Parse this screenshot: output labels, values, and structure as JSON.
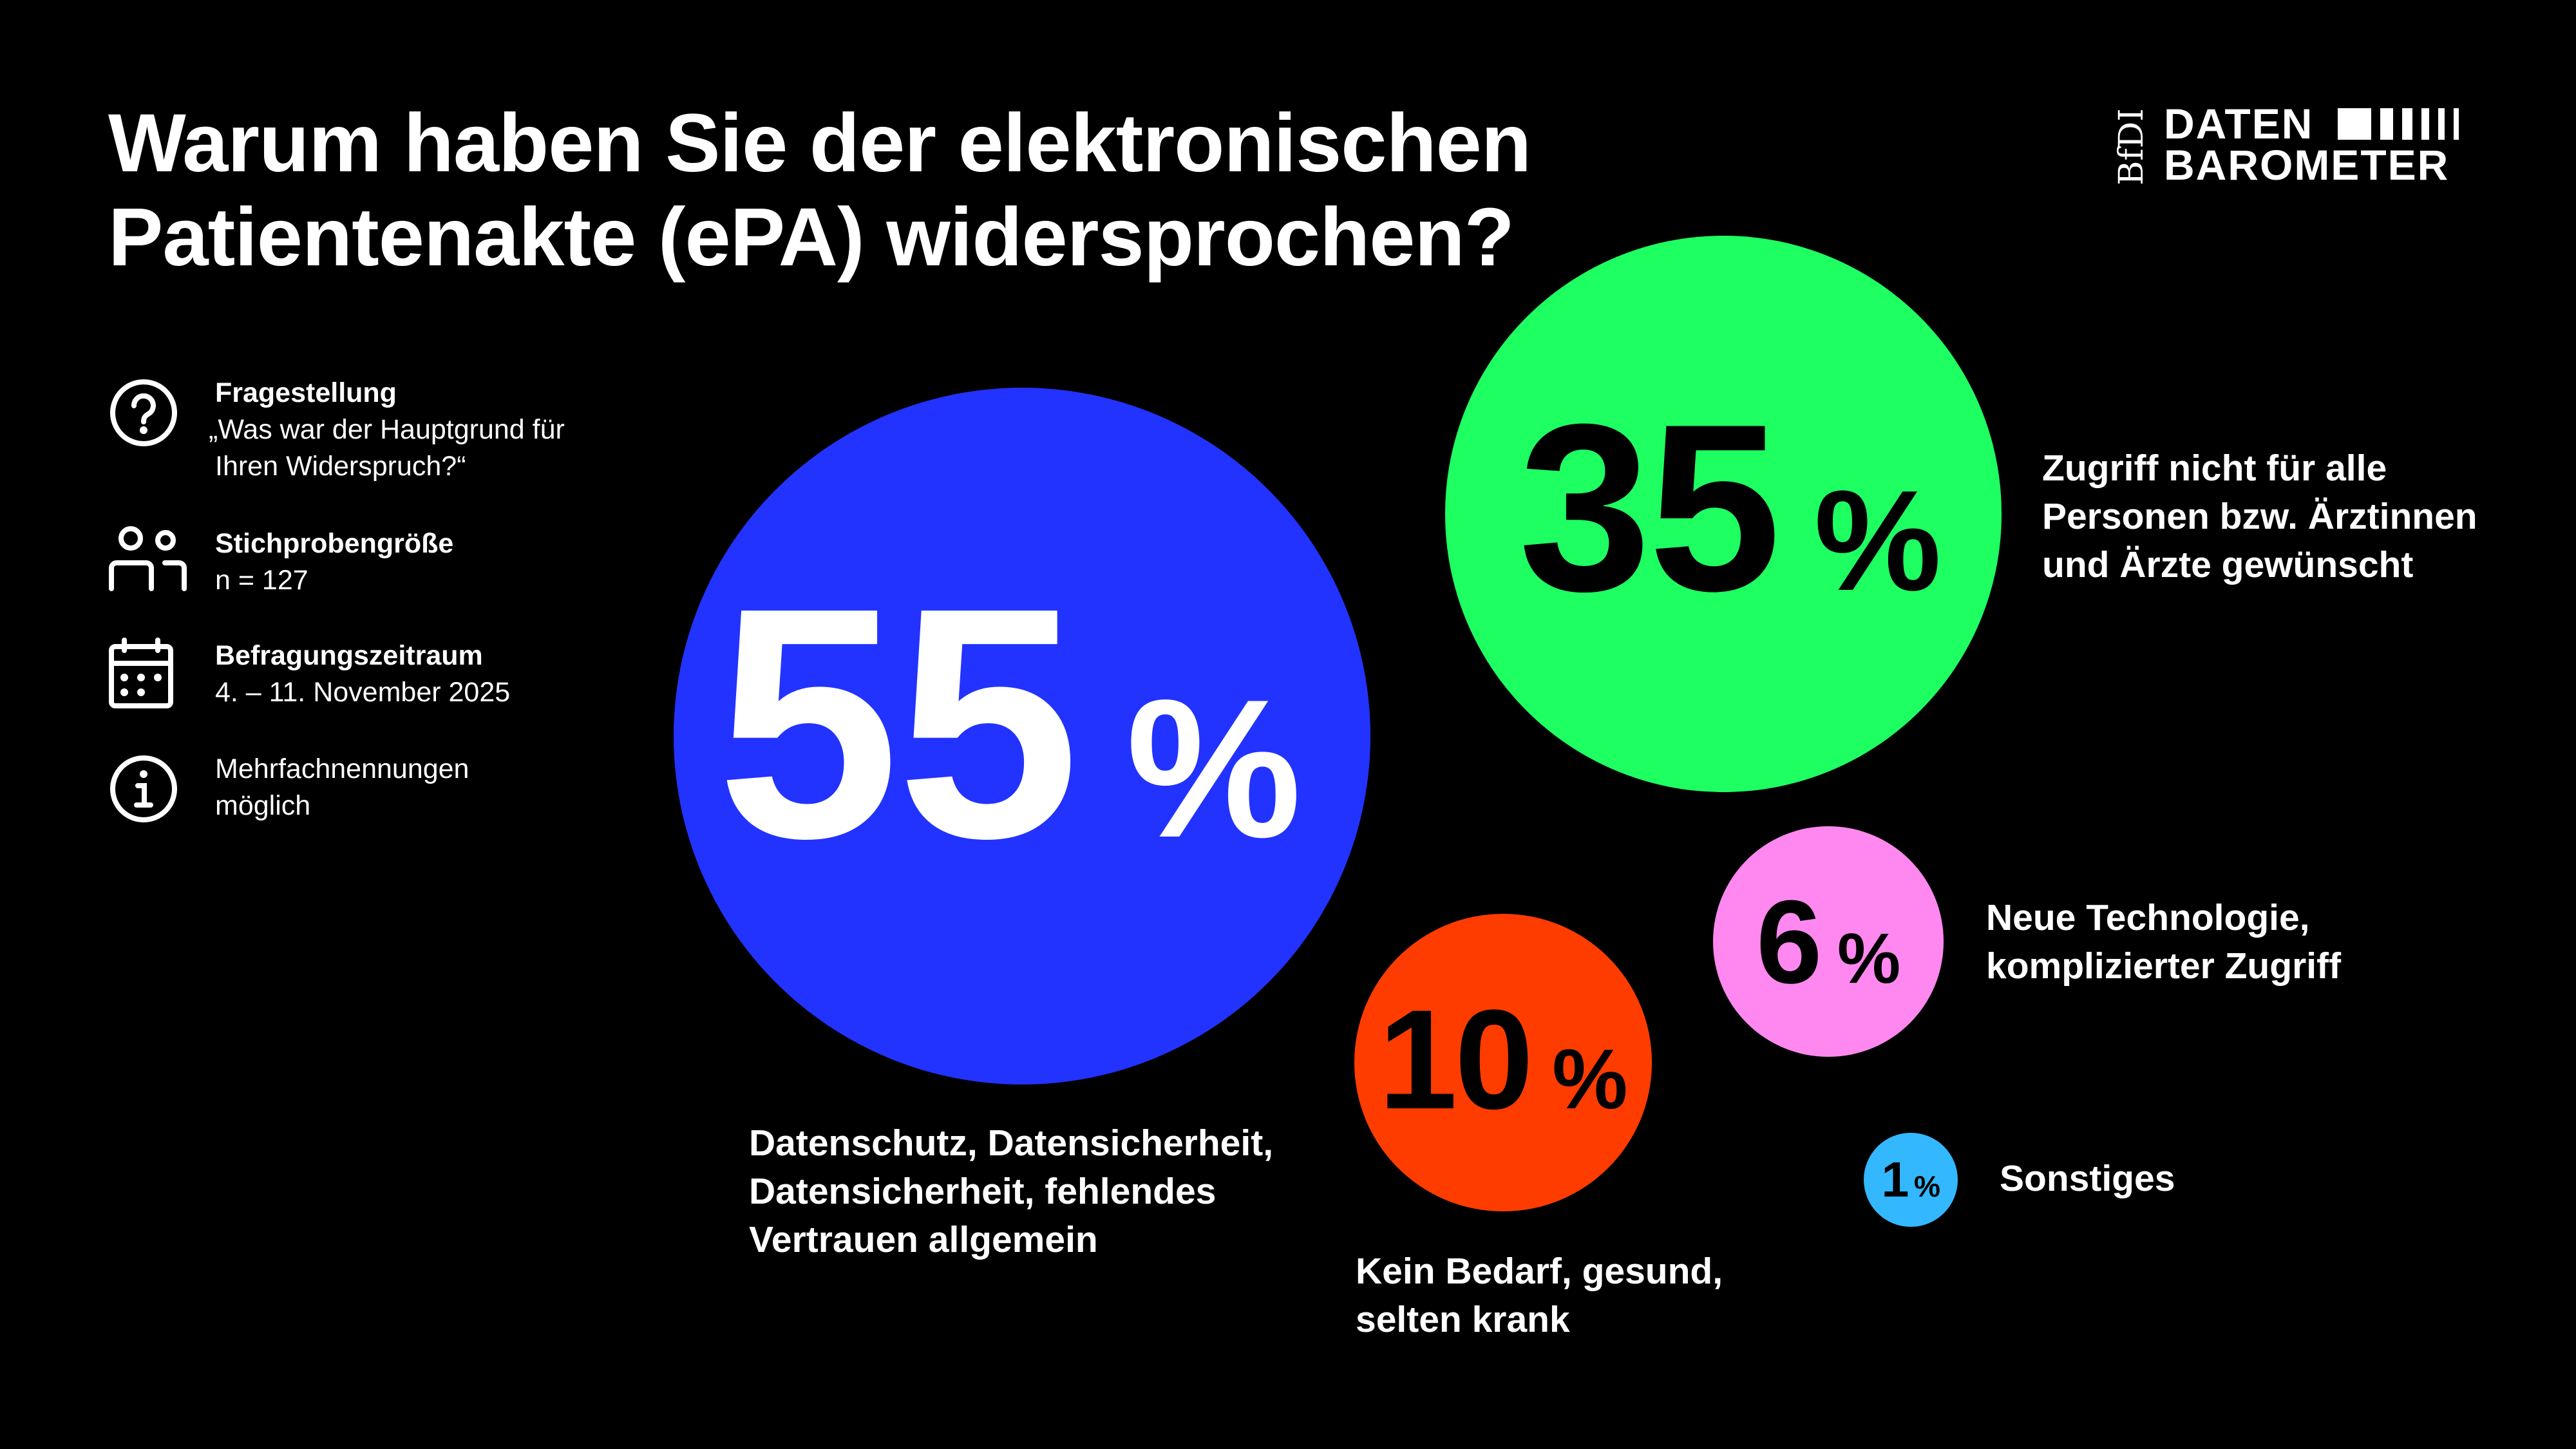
{
  "title": [
    "Warum haben Sie der elektronischen",
    "Patientenakte (ePA) widersprochen?"
  ],
  "logo": {
    "bfdi": "BfDI",
    "line1": "DATEN",
    "line2": "BAROMETER"
  },
  "meta": [
    {
      "icon": "question-circle-icon",
      "heading": "Fragestellung",
      "text": [
        "„Was war der Hauptgrund für",
        "Ihren Widerspruch?“"
      ]
    },
    {
      "icon": "people-icon",
      "heading": "Stichprobengröße",
      "text": [
        "n = 127"
      ]
    },
    {
      "icon": "calendar-icon",
      "heading": "Befragungszeitraum",
      "text": [
        "4. – 11. November 2025"
      ]
    },
    {
      "icon": "info-circle-icon",
      "heading": "",
      "text": [
        "Mehrfachnennungen",
        "möglich"
      ]
    }
  ],
  "chart_data": {
    "type": "bubble",
    "unit": "%",
    "items": [
      {
        "value": 55,
        "label": [
          "Datenschutz, Datensicherheit,",
          "Datensicherheit, fehlendes",
          "Vertrauen allgemein"
        ],
        "color": "#2233ff",
        "text_color": "#ffffff"
      },
      {
        "value": 35,
        "label": [
          "Zugriff nicht für alle",
          "Personen bzw. Ärztinnen",
          "und Ärzte gewünscht"
        ],
        "color": "#1eff62",
        "text_color": "#000000"
      },
      {
        "value": 10,
        "label": [
          "Kein Bedarf, gesund,",
          "selten krank"
        ],
        "color": "#ff3c00",
        "text_color": "#000000"
      },
      {
        "value": 6,
        "label": [
          "Neue Technologie,",
          "komplizierter Zugriff"
        ],
        "color": "#ff88f0",
        "text_color": "#000000"
      },
      {
        "value": 1,
        "label": [
          "Sonstiges"
        ],
        "color": "#33b8ff",
        "text_color": "#000000"
      }
    ]
  }
}
